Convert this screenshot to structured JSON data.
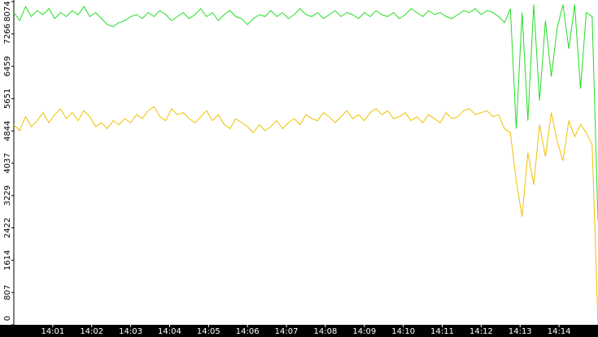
{
  "chart_data": {
    "type": "line",
    "x": [
      0,
      0.15,
      0.3,
      0.45,
      0.6,
      0.75,
      0.9,
      1.05,
      1.2,
      1.35,
      1.5,
      1.65,
      1.8,
      1.95,
      2.1,
      2.25,
      2.4,
      2.55,
      2.7,
      2.85,
      3,
      3.15,
      3.3,
      3.45,
      3.6,
      3.75,
      3.9,
      4.05,
      4.2,
      4.35,
      4.5,
      4.65,
      4.8,
      4.95,
      5.1,
      5.25,
      5.4,
      5.55,
      5.7,
      5.85,
      6,
      6.15,
      6.3,
      6.45,
      6.6,
      6.75,
      6.9,
      7.05,
      7.2,
      7.35,
      7.5,
      7.65,
      7.8,
      7.95,
      8.1,
      8.25,
      8.4,
      8.55,
      8.7,
      8.85,
      9,
      9.15,
      9.3,
      9.45,
      9.6,
      9.75,
      9.9,
      10.05,
      10.2,
      10.35,
      10.5,
      10.65,
      10.8,
      10.95,
      11.1,
      11.25,
      11.4,
      11.55,
      11.7,
      11.85,
      12,
      12.15,
      12.3,
      12.45,
      12.6,
      12.75,
      12.9,
      13.05,
      13.2,
      13.35,
      13.5,
      13.65,
      13.8,
      13.95,
      14.1,
      14.25,
      14.4,
      14.55,
      14.7,
      14.85,
      15
    ],
    "series": [
      {
        "color": "#22dd22",
        "values": [
          7800,
          7600,
          7950,
          7700,
          7850,
          7750,
          7900,
          7650,
          7800,
          7700,
          7850,
          7750,
          7950,
          7700,
          7800,
          7650,
          7500,
          7450,
          7550,
          7600,
          7700,
          7750,
          7650,
          7800,
          7700,
          7850,
          7750,
          7600,
          7700,
          7800,
          7650,
          7750,
          7900,
          7700,
          7800,
          7600,
          7750,
          7850,
          7700,
          7650,
          7500,
          7650,
          7750,
          7700,
          7850,
          7700,
          7800,
          7650,
          7750,
          7900,
          7750,
          7700,
          7800,
          7650,
          7750,
          7850,
          7700,
          7800,
          7750,
          7650,
          7800,
          7700,
          7850,
          7750,
          7700,
          7800,
          7650,
          7750,
          7900,
          7800,
          7700,
          7850,
          7750,
          7800,
          7700,
          7650,
          7750,
          7850,
          7800,
          7900,
          7750,
          7850,
          7800,
          7700,
          7550,
          7900,
          4900,
          7800,
          5100,
          8000,
          5600,
          7600,
          6200,
          7400,
          8000,
          6900,
          8000,
          5900,
          7800,
          7700,
          2600
        ]
      },
      {
        "color": "#f0c000",
        "values": [
          5000,
          4850,
          5200,
          4950,
          5100,
          5300,
          5050,
          5250,
          5400,
          5150,
          5300,
          5100,
          5350,
          5200,
          4950,
          5050,
          4900,
          5100,
          5000,
          5150,
          5050,
          5250,
          5150,
          5350,
          5450,
          5200,
          5100,
          5400,
          5250,
          5300,
          5150,
          5050,
          5200,
          5350,
          5100,
          5250,
          5000,
          4900,
          5150,
          5050,
          4950,
          4800,
          5000,
          4850,
          4950,
          5100,
          4900,
          5050,
          5150,
          5000,
          5250,
          5150,
          5100,
          5300,
          5200,
          5050,
          5200,
          5350,
          5150,
          5250,
          5100,
          5300,
          5400,
          5250,
          5350,
          5150,
          5200,
          5300,
          5100,
          5200,
          5050,
          5250,
          5150,
          5050,
          5300,
          5150,
          5200,
          5350,
          5400,
          5250,
          5300,
          5350,
          5200,
          5250,
          4900,
          4800,
          3600,
          2700,
          4300,
          3500,
          5000,
          4200,
          5300,
          4600,
          4100,
          5100,
          4700,
          5000,
          4800,
          4500,
          0
        ]
      }
    ],
    "xlim": [
      0,
      15
    ],
    "xticks": [
      {
        "value": 1,
        "label": "14:01"
      },
      {
        "value": 2,
        "label": "14:02"
      },
      {
        "value": 3,
        "label": "14:03"
      },
      {
        "value": 4,
        "label": "14:04"
      },
      {
        "value": 5,
        "label": "14:05"
      },
      {
        "value": 6,
        "label": "14:06"
      },
      {
        "value": 7,
        "label": "14:07"
      },
      {
        "value": 8,
        "label": "14:08"
      },
      {
        "value": 9,
        "label": "14:09"
      },
      {
        "value": 10,
        "label": "14:10"
      },
      {
        "value": 11,
        "label": "14:11"
      },
      {
        "value": 12,
        "label": "14:12"
      },
      {
        "value": 13,
        "label": "14:13"
      },
      {
        "value": 14,
        "label": "14:14"
      }
    ],
    "ylim": [
      0,
      8074
    ],
    "yticks": [
      0,
      807,
      1614,
      2422,
      3229,
      4037,
      4844,
      5651,
      6459,
      7266,
      8074
    ]
  }
}
